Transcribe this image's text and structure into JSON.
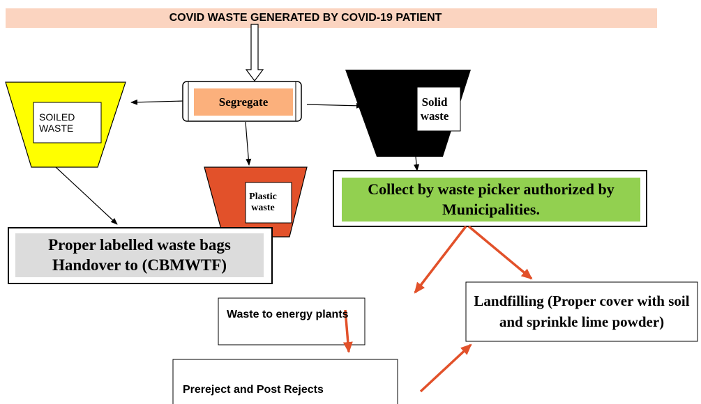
{
  "header": {
    "title": "COVID WASTE GENERATED BY COVID-19 PATIENT"
  },
  "nodes": [
    {
      "label": "Segregate"
    },
    {
      "label": "SOILED WASTE"
    },
    {
      "label": "Solid waste"
    },
    {
      "label": "Plastic waste"
    },
    {
      "label": "Collect by waste picker authorized by Municipalities."
    },
    {
      "label": "Proper labelled waste bags Handover to (CBMWTF)"
    },
    {
      "label": "Waste to energy plants"
    },
    {
      "label": "Landfilling (Proper cover with soil and sprinkle lime powder)"
    },
    {
      "label": "Prereject and Post Rejects"
    }
  ]
}
